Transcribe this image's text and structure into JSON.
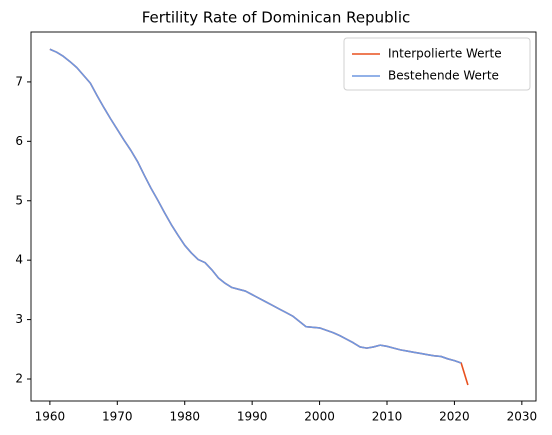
{
  "chart_data": {
    "type": "line",
    "title": "Fertility Rate of Dominican Republic",
    "x": [
      1960,
      1961,
      1962,
      1963,
      1964,
      1965,
      1966,
      1967,
      1968,
      1969,
      1970,
      1971,
      1972,
      1973,
      1974,
      1975,
      1976,
      1977,
      1978,
      1979,
      1980,
      1981,
      1982,
      1983,
      1984,
      1985,
      1986,
      1987,
      1988,
      1989,
      1990,
      1991,
      1992,
      1993,
      1994,
      1995,
      1996,
      1997,
      1998,
      1999,
      2000,
      2001,
      2002,
      2003,
      2004,
      2005,
      2006,
      2007,
      2008,
      2009,
      2010,
      2011,
      2012,
      2013,
      2014,
      2015,
      2016,
      2017,
      2018,
      2019,
      2020,
      2021,
      2022
    ],
    "series": [
      {
        "name": "Interpolierte Werte",
        "color": "#e8511f",
        "values": [
          7.55,
          7.5,
          7.43,
          7.34,
          7.24,
          7.11,
          6.98,
          6.77,
          6.57,
          6.38,
          6.2,
          6.02,
          5.85,
          5.66,
          5.43,
          5.21,
          5.01,
          4.8,
          4.6,
          4.42,
          4.25,
          4.12,
          4.01,
          3.96,
          3.84,
          3.7,
          3.61,
          3.54,
          3.51,
          3.48,
          3.42,
          3.36,
          3.3,
          3.24,
          3.18,
          3.12,
          3.06,
          2.97,
          2.88,
          2.87,
          2.86,
          2.82,
          2.78,
          2.73,
          2.67,
          2.61,
          2.54,
          2.52,
          2.54,
          2.57,
          2.55,
          2.52,
          2.49,
          2.47,
          2.45,
          2.43,
          2.41,
          2.39,
          2.38,
          2.34,
          2.31,
          2.27,
          1.9
        ]
      },
      {
        "name": "Bestehende Werte",
        "color": "#6f97e0",
        "values": [
          7.55,
          7.5,
          7.43,
          7.34,
          7.24,
          7.11,
          6.98,
          6.77,
          6.57,
          6.38,
          6.2,
          6.02,
          5.85,
          5.66,
          5.43,
          5.21,
          5.01,
          4.8,
          4.6,
          4.42,
          4.25,
          4.12,
          4.01,
          3.96,
          3.84,
          3.7,
          3.61,
          3.54,
          3.51,
          3.48,
          3.42,
          3.36,
          3.3,
          3.24,
          3.18,
          3.12,
          3.06,
          2.97,
          2.88,
          2.87,
          2.86,
          2.82,
          2.78,
          2.73,
          2.67,
          2.61,
          2.54,
          2.52,
          2.54,
          2.57,
          2.55,
          2.52,
          2.49,
          2.47,
          2.45,
          2.43,
          2.41,
          2.39,
          2.38,
          2.34,
          2.31,
          2.27,
          null
        ]
      }
    ],
    "xlim": [
      1957.2,
      2032.1
    ],
    "xticks": [
      1960,
      1970,
      1980,
      1990,
      2000,
      2010,
      2020,
      2030
    ],
    "ylim": [
      1.63,
      7.84
    ],
    "yticks": [
      2,
      3,
      4,
      5,
      6,
      7
    ],
    "grid": false,
    "legend": "upper right"
  }
}
